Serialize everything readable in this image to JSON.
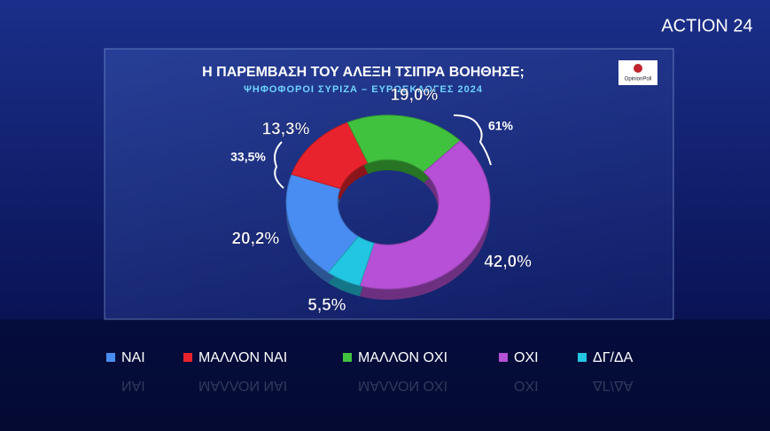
{
  "brand": "ACTION 24",
  "source": "OpinionPoll",
  "chart_data": {
    "type": "donut",
    "title": "Η ΠΑΡΕΜΒΑΣΗ ΤΟΥ ΑΛΕΞΗ ΤΣΙΠΡΑ ΒΟΗΘΗΣΕ;",
    "subtitle": "ΨΗΦΟΦΟΡΟΙ ΣΥΡΙΖΑ – ΕΥΡΩΕΚΛΟΓΕΣ 2024",
    "categories": [
      "ΝΑΙ",
      "ΜΑΛΛΟΝ ΝΑΙ",
      "ΜΑΛΛΟΝ ΟΧΙ",
      "ΟΧΙ",
      "ΔΓ/ΔΑ"
    ],
    "values": [
      20.2,
      13.3,
      19.0,
      42.0,
      5.5
    ],
    "value_labels": [
      "20,2%",
      "13,3%",
      "19,0%",
      "42,0%",
      "5,5%"
    ],
    "colors": [
      "#4a8df2",
      "#e8232d",
      "#41c23f",
      "#b650d6",
      "#23c6e2"
    ],
    "groups": [
      {
        "value": 33.5,
        "label": "33,5%"
      },
      {
        "value": 61,
        "label": "61%"
      }
    ]
  }
}
